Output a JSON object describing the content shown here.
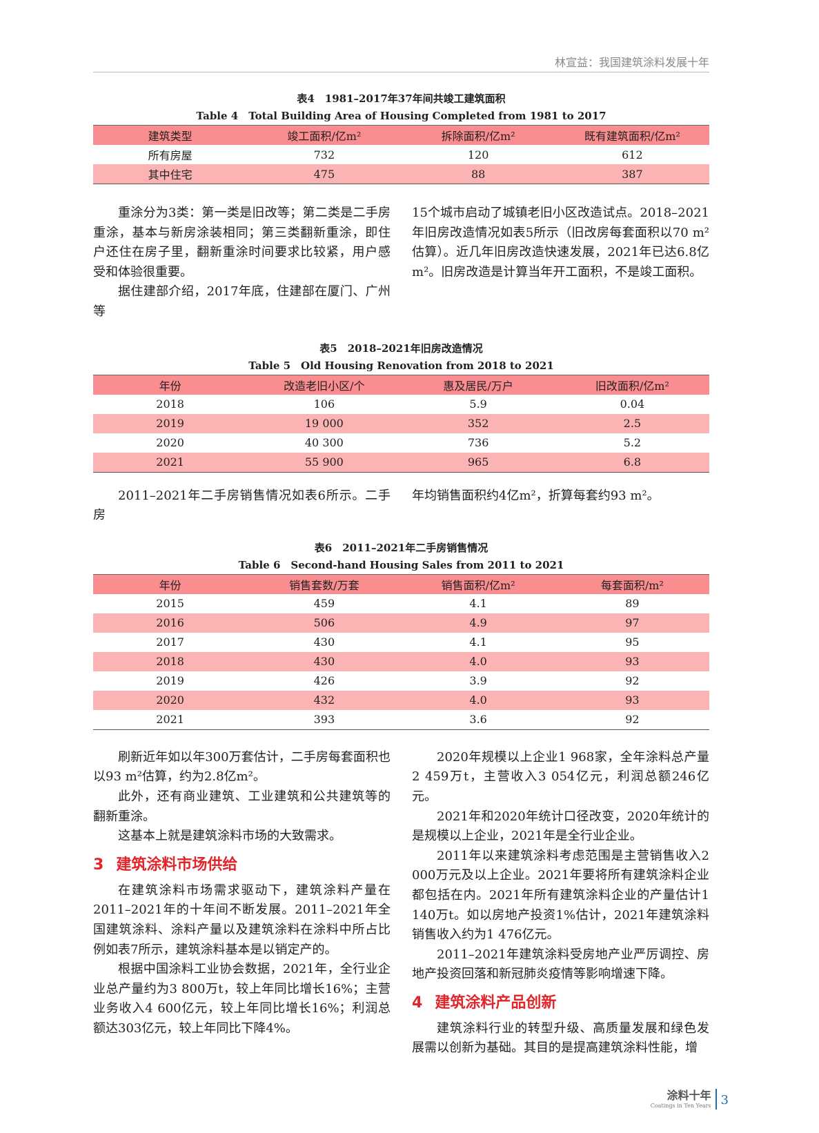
{
  "header": {
    "running_title": "林宣益：我国建筑涂料发展十年"
  },
  "table4": {
    "caption_cn": "表4　1981–2017年37年间共竣工建筑面积",
    "caption_en": "Table 4　Total Building Area of Housing Completed from 1981 to 2017",
    "columns": [
      "建筑类型",
      "竣工面积/亿m²",
      "拆除面积/亿m²",
      "既有建筑面积/亿m²"
    ],
    "rows": [
      [
        "所有房屋",
        "732",
        "120",
        "612"
      ],
      [
        "其中住宅",
        "475",
        "88",
        "387"
      ]
    ]
  },
  "text1": {
    "left": [
      "重涂分为3类：第一类是旧改等；第二类是二手房重涂，基本与新房涂装相同；第三类翻新重涂，即住户还住在房子里，翻新重涂时间要求比较紧，用户感受和体验很重要。",
      "据住建部介绍，2017年底，住建部在厦门、广州等"
    ],
    "right": [
      "15个城市启动了城镇老旧小区改造试点。2018–2021年旧房改造情况如表5所示（旧改房每套面积以70 m²估算）。近几年旧房改造快速发展，2021年已达6.8亿m²。旧房改造是计算当年开工面积，不是竣工面积。"
    ]
  },
  "table5": {
    "caption_cn": "表5　2018–2021年旧房改造情况",
    "caption_en": "Table 5　Old Housing Renovation from 2018 to 2021",
    "columns": [
      "年份",
      "改造老旧小区/个",
      "惠及居民/万户",
      "旧改面积/亿m²"
    ],
    "rows": [
      [
        "2018",
        "106",
        "5.9",
        "0.04"
      ],
      [
        "2019",
        "19 000",
        "352",
        "2.5"
      ],
      [
        "2020",
        "40 300",
        "736",
        "5.2"
      ],
      [
        "2021",
        "55 900",
        "965",
        "6.8"
      ]
    ]
  },
  "text2": {
    "left": "2011–2021年二手房销售情况如表6所示。二手房",
    "right": "年均销售面积约4亿m²，折算每套约93 m²。"
  },
  "table6": {
    "caption_cn": "表6　2011–2021年二手房销售情况",
    "caption_en": "Table 6　Second-hand Housing Sales from 2011 to 2021",
    "columns": [
      "年份",
      "销售套数/万套",
      "销售面积/亿m²",
      "每套面积/m²"
    ],
    "rows": [
      [
        "2015",
        "459",
        "4.1",
        "89"
      ],
      [
        "2016",
        "506",
        "4.9",
        "97"
      ],
      [
        "2017",
        "430",
        "4.1",
        "95"
      ],
      [
        "2018",
        "430",
        "4.0",
        "93"
      ],
      [
        "2019",
        "426",
        "3.9",
        "92"
      ],
      [
        "2020",
        "432",
        "4.0",
        "93"
      ],
      [
        "2021",
        "393",
        "3.6",
        "92"
      ]
    ]
  },
  "text3": {
    "left_p1": "刷新近年如以年300万套估计，二手房每套面积也以93 m²估算，约为2.8亿m²。",
    "left_p2": "此外，还有商业建筑、工业建筑和公共建筑等的翻新重涂。",
    "left_p3": "这基本上就是建筑涂料市场的大致需求。",
    "section3_num": "3",
    "section3_title": "建筑涂料市场供给",
    "left_p4": "在建筑涂料市场需求驱动下，建筑涂料产量在2011–2021年的十年间不断发展。2011–2021年全国建筑涂料、涂料产量以及建筑涂料在涂料中所占比例如表7所示，建筑涂料基本是以销定产的。",
    "left_p5": "根据中国涂料工业协会数据，2021年，全行业企业总产量约为3 800万t，较上年同比增长16%；主营业务收入4 600亿元，较上年同比增长16%；利润总额达303亿元，较上年同比下降4%。",
    "right_p1": "2020年规模以上企业1 968家，全年涂料总产量2 459万t，主营收入3 054亿元，利润总额246亿元。",
    "right_p2": "2021年和2020年统计口径改变，2020年统计的是规模以上企业，2021年是全行业企业。",
    "right_p3": "2011年以来建筑涂料考虑范围是主营销售收入2 000万元及以上企业。2021年要将所有建筑涂料企业都包括在内。2021年所有建筑涂料企业的产量估计1 140万t。如以房地产投资1%估计，2021年建筑涂料销售收入约为1 476亿元。",
    "right_p4": "2011–2021年建筑涂料受房地产业严厉调控、房地产投资回落和新冠肺炎疫情等影响增速下降。",
    "section4_num": "4",
    "section4_title": "建筑涂料产品创新",
    "right_p5": "建筑涂料行业的转型升级、高质量发展和绿色发展需以创新为基础。其目的是提高建筑涂料性能，增"
  },
  "footer": {
    "journal_cn": "涂料十年",
    "journal_en": "Coatings in Ten Years",
    "page": "3"
  },
  "colors": {
    "table_header": "#f98d90",
    "table_alt_row": "#fcb3b4",
    "section_heading": "#e0262b"
  }
}
